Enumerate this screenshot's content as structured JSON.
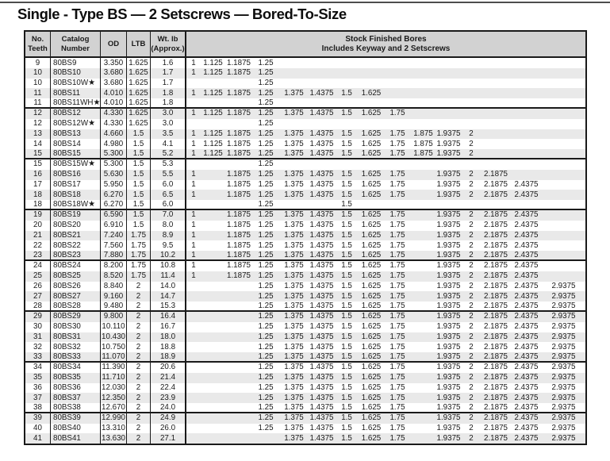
{
  "title": "Single - Type BS — 2 Setscrews — Bored-To-Size",
  "colors": {
    "header_bg": "#d2d2d2",
    "stripe": "#e9e9e9",
    "border": "#1a1a1a"
  },
  "table": {
    "columns": {
      "teeth": "No.\nTeeth",
      "catalog": "Catalog\nNumber",
      "od": "OD",
      "ltb": "LTB",
      "wt": "Wt. lb\n(Approx.)",
      "bores_title": "Stock Finished Bores",
      "bores_subtitle": "Includes Keyway and 2 Setscrews"
    },
    "bore_slots": [
      "1",
      "1.125",
      "1.1875",
      "1.25",
      "1.375",
      "1.4375",
      "1.5",
      "1.625",
      "1.75",
      "1.875",
      "1.9375",
      "2",
      "2.1875",
      "2.4375",
      "2.9375"
    ],
    "group_size": 5,
    "rows": [
      {
        "teeth": "9",
        "catalog": "80BS9",
        "od": "3.350",
        "ltb": "1.625",
        "wt": "1.6",
        "bores": [
          "1",
          "1.125",
          "1.1875",
          "1.25"
        ]
      },
      {
        "teeth": "10",
        "catalog": "80BS10",
        "od": "3.680",
        "ltb": "1.625",
        "wt": "1.7",
        "bores": [
          "1",
          "1.125",
          "1.1875",
          "1.25"
        ]
      },
      {
        "teeth": "10",
        "catalog": "80BS10W★",
        "od": "3.680",
        "ltb": "1.625",
        "wt": "1.7",
        "bores": [
          "1.25"
        ]
      },
      {
        "teeth": "11",
        "catalog": "80BS11",
        "od": "4.010",
        "ltb": "1.625",
        "wt": "1.8",
        "bores": [
          "1",
          "1.125",
          "1.1875",
          "1.25",
          "1.375",
          "1.4375",
          "1.5",
          "1.625"
        ]
      },
      {
        "teeth": "11",
        "catalog": "80BS11WH★",
        "od": "4.010",
        "ltb": "1.625",
        "wt": "1.8",
        "bores": [
          "1.25"
        ]
      },
      {
        "teeth": "12",
        "catalog": "80BS12",
        "od": "4.330",
        "ltb": "1.625",
        "wt": "3.0",
        "bores": [
          "1",
          "1.125",
          "1.1875",
          "1.25",
          "1.375",
          "1.4375",
          "1.5",
          "1.625",
          "1.75"
        ]
      },
      {
        "teeth": "12",
        "catalog": "80BS12W★",
        "od": "4.330",
        "ltb": "1.625",
        "wt": "3.0",
        "bores": [
          "1.25"
        ]
      },
      {
        "teeth": "13",
        "catalog": "80BS13",
        "od": "4.660",
        "ltb": "1.5",
        "wt": "3.5",
        "bores": [
          "1",
          "1.125",
          "1.1875",
          "1.25",
          "1.375",
          "1.4375",
          "1.5",
          "1.625",
          "1.75",
          "1.875",
          "1.9375",
          "2"
        ]
      },
      {
        "teeth": "14",
        "catalog": "80BS14",
        "od": "4.980",
        "ltb": "1.5",
        "wt": "4.1",
        "bores": [
          "1",
          "1.125",
          "1.1875",
          "1.25",
          "1.375",
          "1.4375",
          "1.5",
          "1.625",
          "1.75",
          "1.875",
          "1.9375",
          "2"
        ]
      },
      {
        "teeth": "15",
        "catalog": "80BS15",
        "od": "5.300",
        "ltb": "1.5",
        "wt": "5.2",
        "bores": [
          "1",
          "1.125",
          "1.1875",
          "1.25",
          "1.375",
          "1.4375",
          "1.5",
          "1.625",
          "1.75",
          "1.875",
          "1.9375",
          "2"
        ]
      },
      {
        "teeth": "15",
        "catalog": "80BS15W★",
        "od": "5.300",
        "ltb": "1.5",
        "wt": "5.3",
        "bores": [
          "1.25"
        ]
      },
      {
        "teeth": "16",
        "catalog": "80BS16",
        "od": "5.630",
        "ltb": "1.5",
        "wt": "5.5",
        "bores": [
          "1",
          "1.1875",
          "1.25",
          "1.375",
          "1.4375",
          "1.5",
          "1.625",
          "1.75",
          "1.9375",
          "2",
          "2.1875"
        ]
      },
      {
        "teeth": "17",
        "catalog": "80BS17",
        "od": "5.950",
        "ltb": "1.5",
        "wt": "6.0",
        "bores": [
          "1",
          "1.1875",
          "1.25",
          "1.375",
          "1.4375",
          "1.5",
          "1.625",
          "1.75",
          "1.9375",
          "2",
          "2.1875",
          "2.4375"
        ]
      },
      {
        "teeth": "18",
        "catalog": "80BS18",
        "od": "6.270",
        "ltb": "1.5",
        "wt": "6.5",
        "bores": [
          "1",
          "1.1875",
          "1.25",
          "1.375",
          "1.4375",
          "1.5",
          "1.625",
          "1.75",
          "1.9375",
          "2",
          "2.1875",
          "2.4375"
        ]
      },
      {
        "teeth": "18",
        "catalog": "80BS18W★",
        "od": "6.270",
        "ltb": "1.5",
        "wt": "6.0",
        "bores": [
          "1.25",
          "1.5"
        ]
      },
      {
        "teeth": "19",
        "catalog": "80BS19",
        "od": "6.590",
        "ltb": "1.5",
        "wt": "7.0",
        "bores": [
          "1",
          "1.1875",
          "1.25",
          "1.375",
          "1.4375",
          "1.5",
          "1.625",
          "1.75",
          "1.9375",
          "2",
          "2.1875",
          "2.4375"
        ]
      },
      {
        "teeth": "20",
        "catalog": "80BS20",
        "od": "6.910",
        "ltb": "1.5",
        "wt": "8.0",
        "bores": [
          "1",
          "1.1875",
          "1.25",
          "1.375",
          "1.4375",
          "1.5",
          "1.625",
          "1.75",
          "1.9375",
          "2",
          "2.1875",
          "2.4375"
        ]
      },
      {
        "teeth": "21",
        "catalog": "80BS21",
        "od": "7.240",
        "ltb": "1.75",
        "wt": "8.9",
        "bores": [
          "1",
          "1.1875",
          "1.25",
          "1.375",
          "1.4375",
          "1.5",
          "1.625",
          "1.75",
          "1.9375",
          "2",
          "2.1875",
          "2.4375"
        ]
      },
      {
        "teeth": "22",
        "catalog": "80BS22",
        "od": "7.560",
        "ltb": "1.75",
        "wt": "9.5",
        "bores": [
          "1",
          "1.1875",
          "1.25",
          "1.375",
          "1.4375",
          "1.5",
          "1.625",
          "1.75",
          "1.9375",
          "2",
          "2.1875",
          "2.4375"
        ]
      },
      {
        "teeth": "23",
        "catalog": "80BS23",
        "od": "7.880",
        "ltb": "1.75",
        "wt": "10.2",
        "bores": [
          "1",
          "1.1875",
          "1.25",
          "1.375",
          "1.4375",
          "1.5",
          "1.625",
          "1.75",
          "1.9375",
          "2",
          "2.1875",
          "2.4375"
        ]
      },
      {
        "teeth": "24",
        "catalog": "80BS24",
        "od": "8.200",
        "ltb": "1.75",
        "wt": "10.8",
        "bores": [
          "1",
          "1.1875",
          "1.25",
          "1.375",
          "1.4375",
          "1.5",
          "1.625",
          "1.75",
          "1.9375",
          "2",
          "2.1875",
          "2.4375"
        ]
      },
      {
        "teeth": "25",
        "catalog": "80BS25",
        "od": "8.520",
        "ltb": "1.75",
        "wt": "11.4",
        "bores": [
          "1",
          "1.1875",
          "1.25",
          "1.375",
          "1.4375",
          "1.5",
          "1.625",
          "1.75",
          "1.9375",
          "2",
          "2.1875",
          "2.4375"
        ]
      },
      {
        "teeth": "26",
        "catalog": "80BS26",
        "od": "8.840",
        "ltb": "2",
        "wt": "14.0",
        "bores": [
          "1.25",
          "1.375",
          "1.4375",
          "1.5",
          "1.625",
          "1.75",
          "1.9375",
          "2",
          "2.1875",
          "2.4375",
          "2.9375"
        ]
      },
      {
        "teeth": "27",
        "catalog": "80BS27",
        "od": "9.160",
        "ltb": "2",
        "wt": "14.7",
        "bores": [
          "1.25",
          "1.375",
          "1.4375",
          "1.5",
          "1.625",
          "1.75",
          "1.9375",
          "2",
          "2.1875",
          "2.4375",
          "2.9375"
        ]
      },
      {
        "teeth": "28",
        "catalog": "80BS28",
        "od": "9.480",
        "ltb": "2",
        "wt": "15.3",
        "bores": [
          "1.25",
          "1.375",
          "1.4375",
          "1.5",
          "1.625",
          "1.75",
          "1.9375",
          "2",
          "2.1875",
          "2.4375",
          "2.9375"
        ]
      },
      {
        "teeth": "29",
        "catalog": "80BS29",
        "od": "9.800",
        "ltb": "2",
        "wt": "16.4",
        "bores": [
          "1.25",
          "1.375",
          "1.4375",
          "1.5",
          "1.625",
          "1.75",
          "1.9375",
          "2",
          "2.1875",
          "2.4375",
          "2.9375"
        ]
      },
      {
        "teeth": "30",
        "catalog": "80BS30",
        "od": "10.110",
        "ltb": "2",
        "wt": "16.7",
        "bores": [
          "1.25",
          "1.375",
          "1.4375",
          "1.5",
          "1.625",
          "1.75",
          "1.9375",
          "2",
          "2.1875",
          "2.4375",
          "2.9375"
        ]
      },
      {
        "teeth": "31",
        "catalog": "80BS31",
        "od": "10.430",
        "ltb": "2",
        "wt": "18.0",
        "bores": [
          "1.25",
          "1.375",
          "1.4375",
          "1.5",
          "1.625",
          "1.75",
          "1.9375",
          "2",
          "2.1875",
          "2.4375",
          "2.9375"
        ]
      },
      {
        "teeth": "32",
        "catalog": "80BS32",
        "od": "10.750",
        "ltb": "2",
        "wt": "18.8",
        "bores": [
          "1.25",
          "1.375",
          "1.4375",
          "1.5",
          "1.625",
          "1.75",
          "1.9375",
          "2",
          "2.1875",
          "2.4375",
          "2.9375"
        ]
      },
      {
        "teeth": "33",
        "catalog": "80BS33",
        "od": "11.070",
        "ltb": "2",
        "wt": "18.9",
        "bores": [
          "1.25",
          "1.375",
          "1.4375",
          "1.5",
          "1.625",
          "1.75",
          "1.9375",
          "2",
          "2.1875",
          "2.4375",
          "2.9375"
        ]
      },
      {
        "teeth": "34",
        "catalog": "80BS34",
        "od": "11.390",
        "ltb": "2",
        "wt": "20.6",
        "bores": [
          "1.25",
          "1.375",
          "1.4375",
          "1.5",
          "1.625",
          "1.75",
          "1.9375",
          "2",
          "2.1875",
          "2.4375",
          "2.9375"
        ]
      },
      {
        "teeth": "35",
        "catalog": "80BS35",
        "od": "11.710",
        "ltb": "2",
        "wt": "21.4",
        "bores": [
          "1.25",
          "1.375",
          "1.4375",
          "1.5",
          "1.625",
          "1.75",
          "1.9375",
          "2",
          "2.1875",
          "2.4375",
          "2.9375"
        ]
      },
      {
        "teeth": "36",
        "catalog": "80BS36",
        "od": "12.030",
        "ltb": "2",
        "wt": "22.4",
        "bores": [
          "1.25",
          "1.375",
          "1.4375",
          "1.5",
          "1.625",
          "1.75",
          "1.9375",
          "2",
          "2.1875",
          "2.4375",
          "2.9375"
        ]
      },
      {
        "teeth": "37",
        "catalog": "80BS37",
        "od": "12.350",
        "ltb": "2",
        "wt": "23.9",
        "bores": [
          "1.25",
          "1.375",
          "1.4375",
          "1.5",
          "1.625",
          "1.75",
          "1.9375",
          "2",
          "2.1875",
          "2.4375",
          "2.9375"
        ]
      },
      {
        "teeth": "38",
        "catalog": "80BS38",
        "od": "12.670",
        "ltb": "2",
        "wt": "24.0",
        "bores": [
          "1.25",
          "1.375",
          "1.4375",
          "1.5",
          "1.625",
          "1.75",
          "1.9375",
          "2",
          "2.1875",
          "2.4375",
          "2.9375"
        ]
      },
      {
        "teeth": "39",
        "catalog": "80BS39",
        "od": "12.990",
        "ltb": "2",
        "wt": "24.9",
        "bores": [
          "1.25",
          "1.375",
          "1.4375",
          "1.5",
          "1.625",
          "1.75",
          "1.9375",
          "2",
          "2.1875",
          "2.4375",
          "2.9375"
        ]
      },
      {
        "teeth": "40",
        "catalog": "80BS40",
        "od": "13.310",
        "ltb": "2",
        "wt": "26.0",
        "bores": [
          "1.25",
          "1.375",
          "1.4375",
          "1.5",
          "1.625",
          "1.75",
          "1.9375",
          "2",
          "2.1875",
          "2.4375",
          "2.9375"
        ]
      },
      {
        "teeth": "41",
        "catalog": "80BS41",
        "od": "13.630",
        "ltb": "2",
        "wt": "27.1",
        "bores": [
          "1.375",
          "1.4375",
          "1.5",
          "1.625",
          "1.75",
          "1.9375",
          "2",
          "2.1875",
          "2.4375",
          "2.9375"
        ]
      }
    ]
  }
}
